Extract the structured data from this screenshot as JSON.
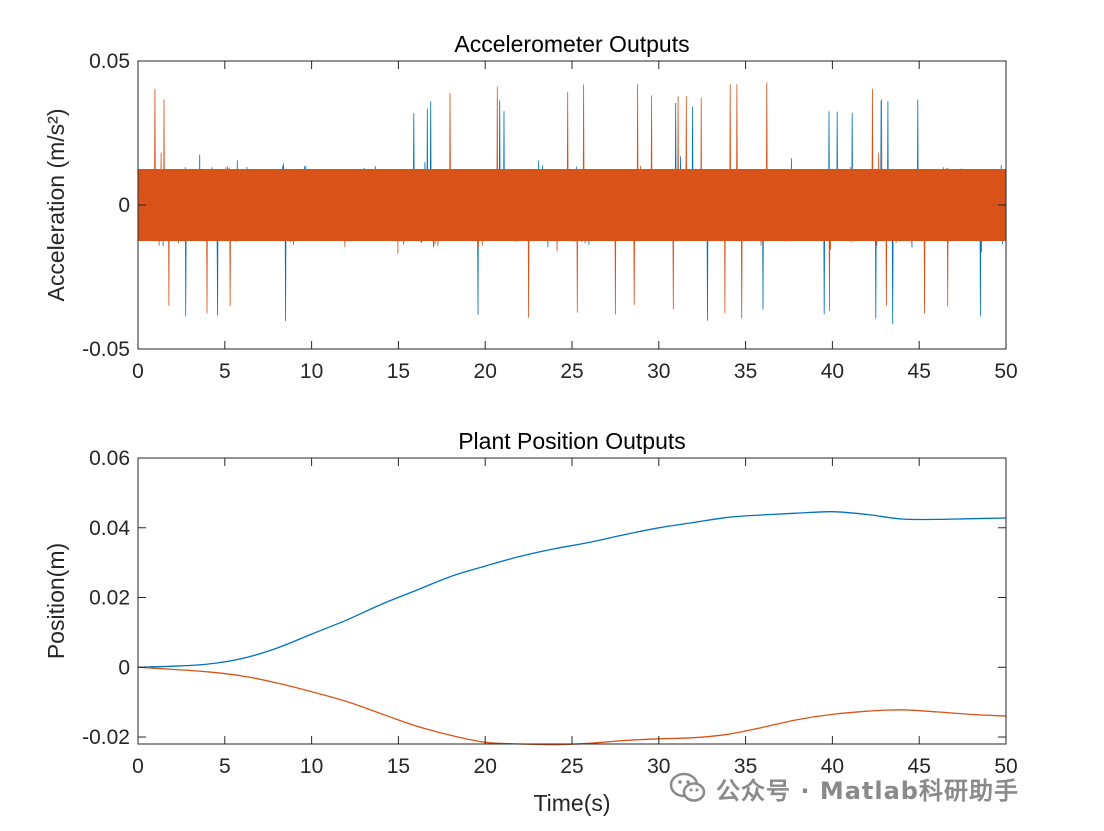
{
  "colors": {
    "series1": "#0072BD",
    "series2": "#D95319",
    "axis": "#262626",
    "background": "#ffffff"
  },
  "watermark": {
    "text": "公众号 · Matlab科研助手",
    "icon": "wechat-icon"
  },
  "chart_data": [
    {
      "type": "line",
      "title": "Accelerometer Outputs",
      "xlabel": "",
      "ylabel": "Acceleration (m/s²)",
      "xlim": [
        0,
        50
      ],
      "ylim": [
        -0.05,
        0.05
      ],
      "xticks": [
        "0",
        "5",
        "10",
        "15",
        "20",
        "25",
        "30",
        "35",
        "40",
        "45",
        "50"
      ],
      "yticks": [
        "-0.05",
        "0",
        "0.05"
      ],
      "grid": false,
      "legend": "none",
      "noise": {
        "blue_core_band": [
          -0.02,
          0.02
        ],
        "blue_extremes": [
          -0.042,
          0.037
        ],
        "orange_core_band": [
          -0.019,
          0.019
        ],
        "orange_extremes": [
          -0.04,
          0.043
        ]
      },
      "series": [
        {
          "color": "#0072BD"
        },
        {
          "color": "#D95319"
        }
      ]
    },
    {
      "type": "line",
      "title": "Plant Position Outputs",
      "xlabel": "Time(s)",
      "ylabel": "Position(m)",
      "xlim": [
        0,
        50
      ],
      "ylim": [
        -0.022,
        0.06
      ],
      "xticks": [
        "0",
        "5",
        "10",
        "15",
        "20",
        "25",
        "30",
        "35",
        "40",
        "45",
        "50"
      ],
      "yticks": [
        "-0.02",
        "0",
        "0.02",
        "0.04",
        "0.06"
      ],
      "grid": false,
      "legend": "none",
      "x": [
        0,
        2,
        4,
        6,
        8,
        10,
        12,
        14,
        16,
        18,
        20,
        22,
        24,
        26,
        28,
        30,
        32,
        34,
        36,
        38,
        40,
        42,
        44,
        46,
        48,
        50
      ],
      "series": [
        {
          "color": "#0072BD",
          "values": [
            0,
            0.0003,
            0.0009,
            0.0025,
            0.0055,
            0.0095,
            0.0135,
            0.018,
            0.022,
            0.026,
            0.029,
            0.0318,
            0.034,
            0.0358,
            0.038,
            0.04,
            0.0415,
            0.043,
            0.0437,
            0.0442,
            0.0446,
            0.0438,
            0.0425,
            0.0424,
            0.0426,
            0.0428
          ]
        },
        {
          "color": "#D95319",
          "values": [
            0,
            -0.0006,
            -0.0013,
            -0.0025,
            -0.0045,
            -0.007,
            -0.0098,
            -0.0133,
            -0.0168,
            -0.0195,
            -0.0215,
            -0.022,
            -0.0222,
            -0.0218,
            -0.021,
            -0.0205,
            -0.0202,
            -0.0192,
            -0.0172,
            -0.015,
            -0.0135,
            -0.0126,
            -0.0122,
            -0.0128,
            -0.0135,
            -0.014
          ]
        }
      ]
    }
  ]
}
